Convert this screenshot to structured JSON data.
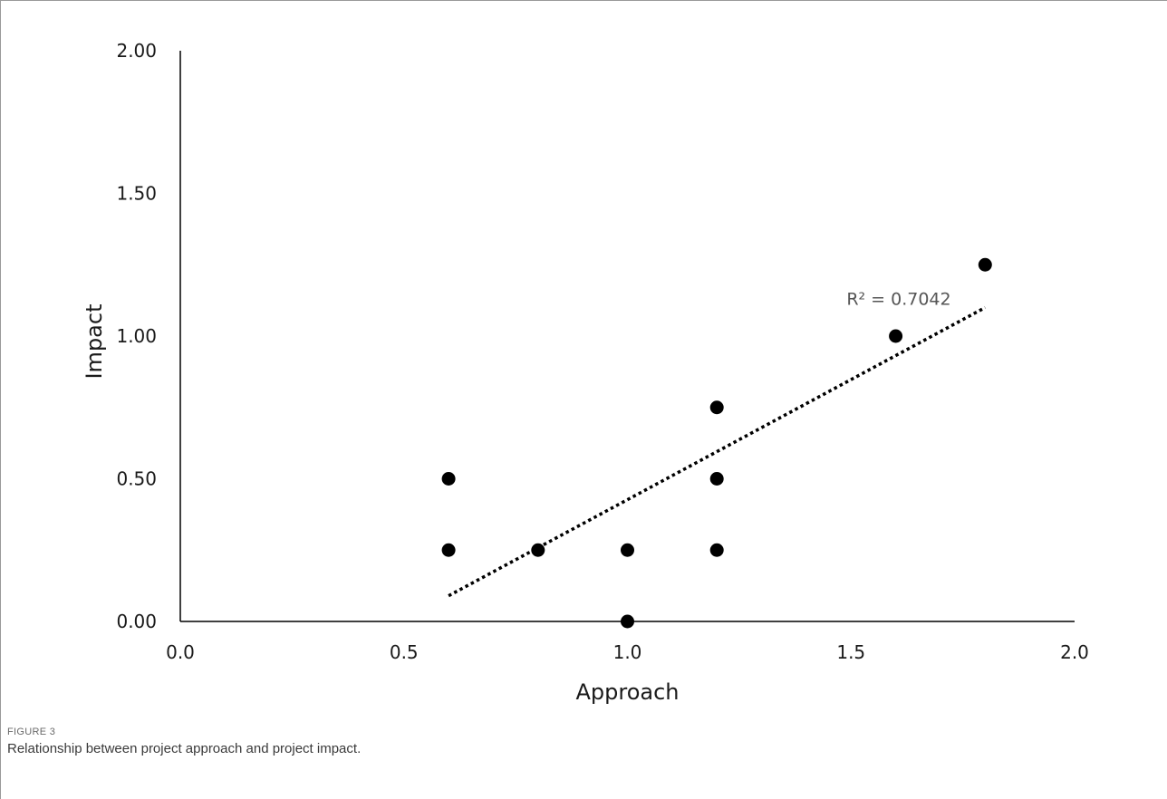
{
  "chart_data": {
    "type": "scatter",
    "xlabel": "Approach",
    "ylabel": "Impact",
    "xlim": [
      0.0,
      2.0
    ],
    "ylim": [
      0.0,
      2.0
    ],
    "x_ticks": [
      "0.0",
      "0.5",
      "1.0",
      "1.5",
      "2.0"
    ],
    "y_ticks": [
      "0.00",
      "0.50",
      "1.00",
      "1.50",
      "2.00"
    ],
    "x_tick_values": [
      0.0,
      0.5,
      1.0,
      1.5,
      2.0
    ],
    "y_tick_values": [
      0.0,
      0.5,
      1.0,
      1.5,
      2.0
    ],
    "grid": false,
    "points": [
      {
        "x": 0.6,
        "y": 0.5
      },
      {
        "x": 0.6,
        "y": 0.25
      },
      {
        "x": 0.8,
        "y": 0.25
      },
      {
        "x": 1.0,
        "y": 0.25
      },
      {
        "x": 1.0,
        "y": 0.0
      },
      {
        "x": 1.2,
        "y": 0.75
      },
      {
        "x": 1.2,
        "y": 0.5
      },
      {
        "x": 1.2,
        "y": 0.25
      },
      {
        "x": 1.6,
        "y": 1.0
      },
      {
        "x": 1.8,
        "y": 1.25
      }
    ],
    "trendline": {
      "style": "dotted",
      "x1": 0.6,
      "y1": 0.09,
      "x2": 1.8,
      "y2": 1.1
    },
    "annotation": "R² = 0.7042",
    "colors": {
      "points": "#000000",
      "axes": "#000000",
      "trendline": "#000000"
    }
  },
  "figure_label": "FIGURE 3",
  "caption": "Relationship between project approach and project impact."
}
